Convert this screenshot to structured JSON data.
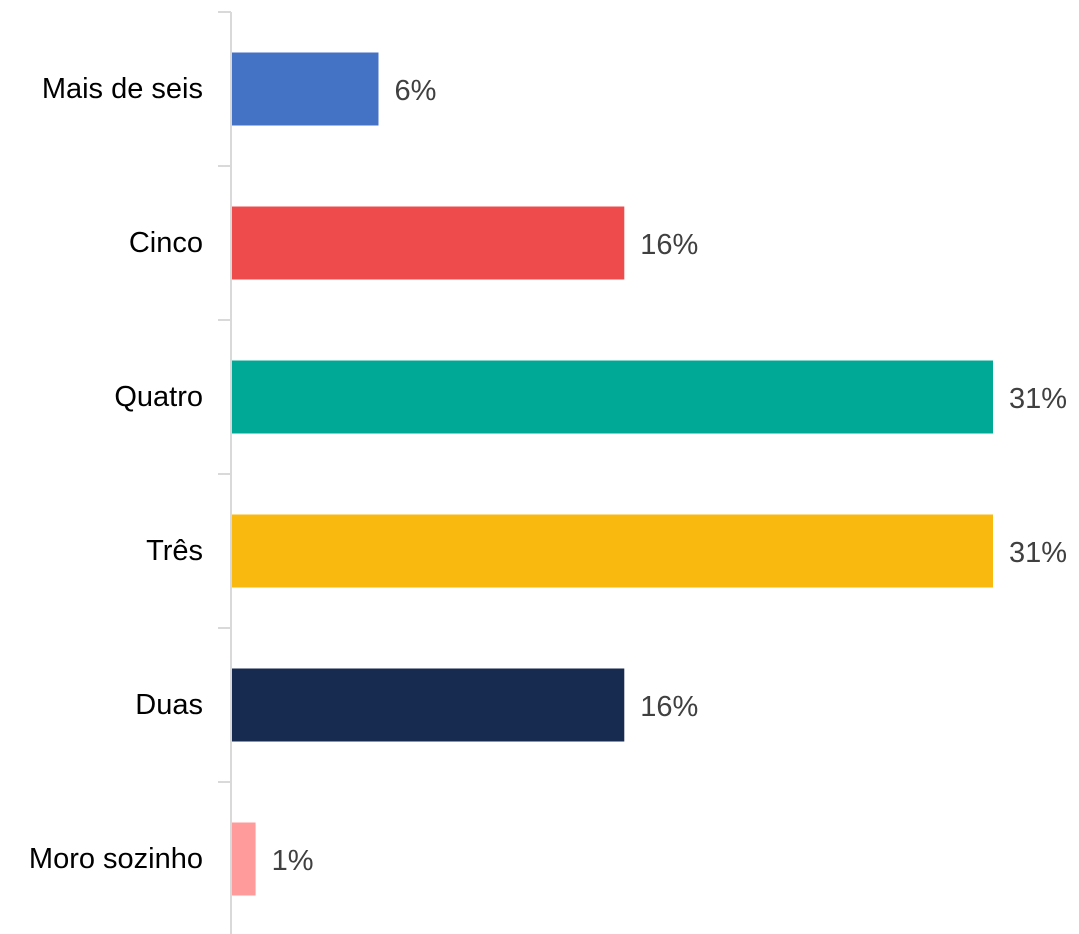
{
  "chart_data": {
    "type": "bar",
    "orientation": "horizontal",
    "title": "",
    "xlabel": "",
    "ylabel": "",
    "grid": false,
    "legend": "none",
    "unit": "%",
    "xlim": [
      0,
      31
    ],
    "categories": [
      "Mais de seis",
      "Cinco",
      "Quatro",
      "Três",
      "Duas",
      "Moro sozinho"
    ],
    "values": [
      6,
      16,
      31,
      31,
      16,
      1
    ],
    "value_labels": [
      "6%",
      "16%",
      "31%",
      "31%",
      "16%",
      "1%"
    ],
    "colors": [
      "#4472c4",
      "#ee4c4c",
      "#00a995",
      "#f9b90f",
      "#172a4f",
      "#ff9b9b"
    ]
  },
  "axis_color": "#d9d9d9"
}
